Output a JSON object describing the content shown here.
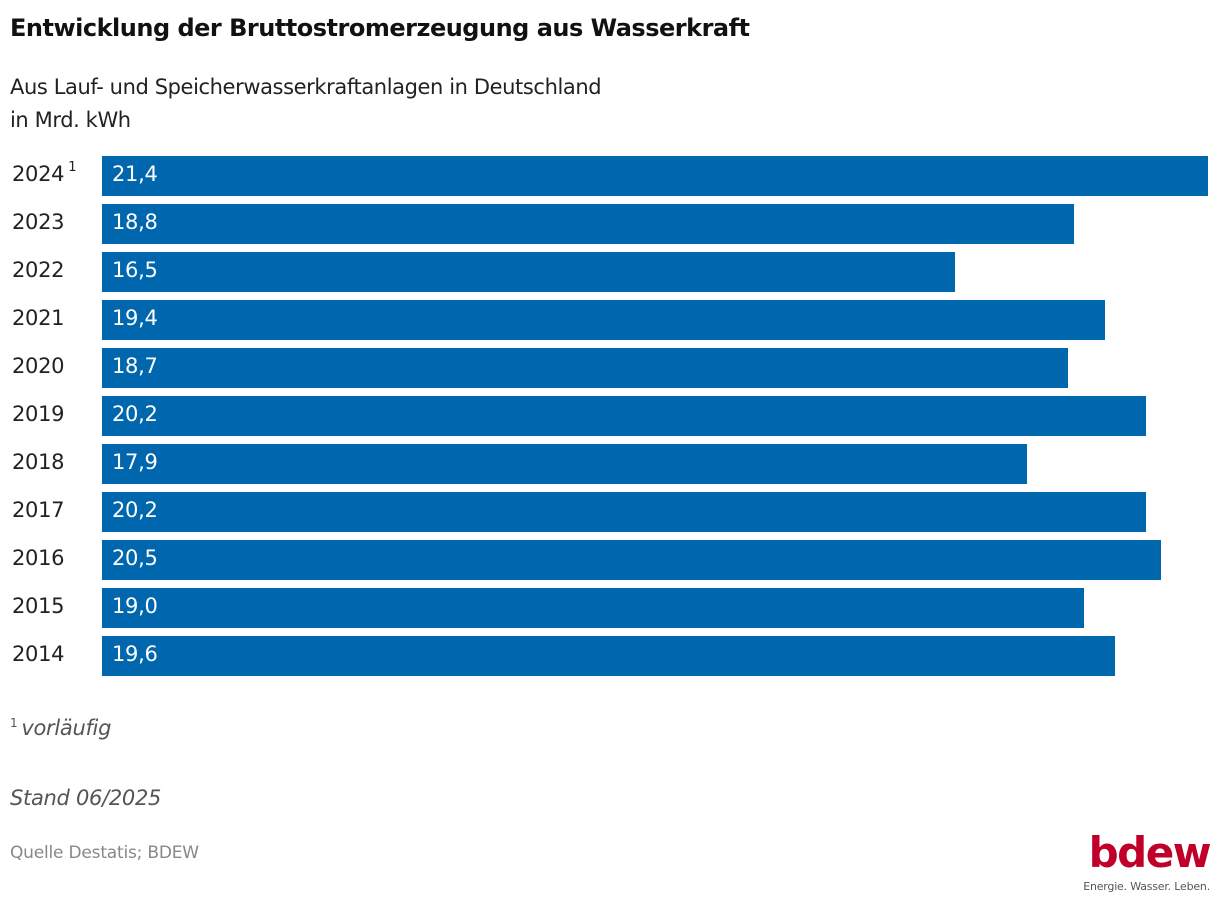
{
  "header": {
    "title": "Entwicklung der Bruttostromerzeugung aus Wasserkraft",
    "subtitle_line1": "Aus Lauf- und Speicherwasserkraftanlagen in Deutschland",
    "subtitle_line2": "in Mrd. kWh"
  },
  "chart_data": {
    "type": "bar",
    "orientation": "horizontal",
    "title": "Entwicklung der Bruttostromerzeugung aus Wasserkraft",
    "subtitle": "Aus Lauf- und Speicherwasserkraftanlagen in Deutschland",
    "unit": "in Mrd. kWh",
    "xlabel": "",
    "ylabel": "",
    "categories": [
      "2024",
      "2023",
      "2022",
      "2021",
      "2020",
      "2019",
      "2018",
      "2017",
      "2016",
      "2015",
      "2014"
    ],
    "category_footnote_marks": [
      "1",
      "",
      "",
      "",
      "",
      "",
      "",
      "",
      "",
      "",
      ""
    ],
    "values": [
      21.4,
      18.8,
      16.5,
      19.4,
      18.7,
      20.2,
      17.9,
      20.2,
      20.5,
      19.0,
      19.6
    ],
    "value_labels": [
      "21,4",
      "18,8",
      "16,5",
      "19,4",
      "18,7",
      "20,2",
      "17,9",
      "20,2",
      "20,5",
      "19,0",
      "19,6"
    ],
    "xlim": [
      0,
      21.4
    ],
    "grid": false,
    "legend": "none",
    "bar_color": "#0066ae"
  },
  "footer": {
    "footnote_mark": "1",
    "footnote_text": "vorläufig",
    "stand": "Stand 06/2025",
    "source": "Quelle Destatis; BDEW"
  },
  "logo": {
    "word": "bdew",
    "claim": "Energie. Wasser. Leben.",
    "color": "#c1002a"
  }
}
